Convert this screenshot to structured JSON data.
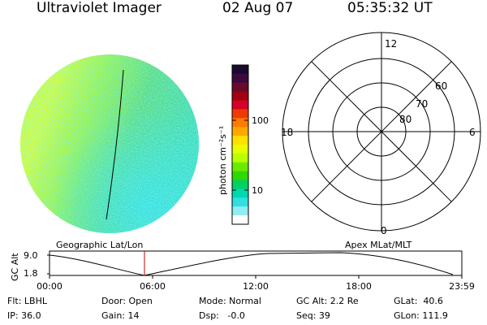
{
  "header": {
    "instrument": "Ultraviolet Imager",
    "date": "02 Aug 07",
    "time": "05:35:32 UT"
  },
  "colorbar": {
    "unit_label": "photon cm⁻²s⁻¹",
    "ticks": [
      "100",
      "10"
    ],
    "colors": [
      "#1a0a2e",
      "#3b0a3e",
      "#6a0a2a",
      "#a10010",
      "#d4002a",
      "#ee3a00",
      "#ff7a00",
      "#ffa800",
      "#ffe000",
      "#e6ff00",
      "#b8ff00",
      "#6aea00",
      "#30d800",
      "#00d060",
      "#00d8b0",
      "#30e0e0",
      "#90eef0",
      "#ffffff"
    ]
  },
  "polar": {
    "top_label": "12",
    "bottom_label": "0",
    "left_label": "18",
    "right_label": "6",
    "lat_labels": [
      "60",
      "70",
      "80"
    ]
  },
  "strip": {
    "left_caption": "Geographic Lat/Lon",
    "right_caption": "Apex MLat/MLT",
    "ylabel": "GC Alt",
    "y_ticks": [
      "9.0",
      "1.8"
    ],
    "x_ticks": [
      "00:00",
      "06:00",
      "12:00",
      "18:00",
      "23:59"
    ],
    "marker_color": "#c00000"
  },
  "info": {
    "flt": "Flt: LBHL",
    "ip": "IP: 36.0",
    "door": "Door: Open",
    "gain": "Gain: 14",
    "mode": "Mode: Normal",
    "dsp": "Dsp:   -0.0",
    "gcalt": "GC Alt: 2.2 Re",
    "seq": "Seq: 39",
    "glat": "GLat:  40.6",
    "glon": "GLon: 111.9"
  }
}
